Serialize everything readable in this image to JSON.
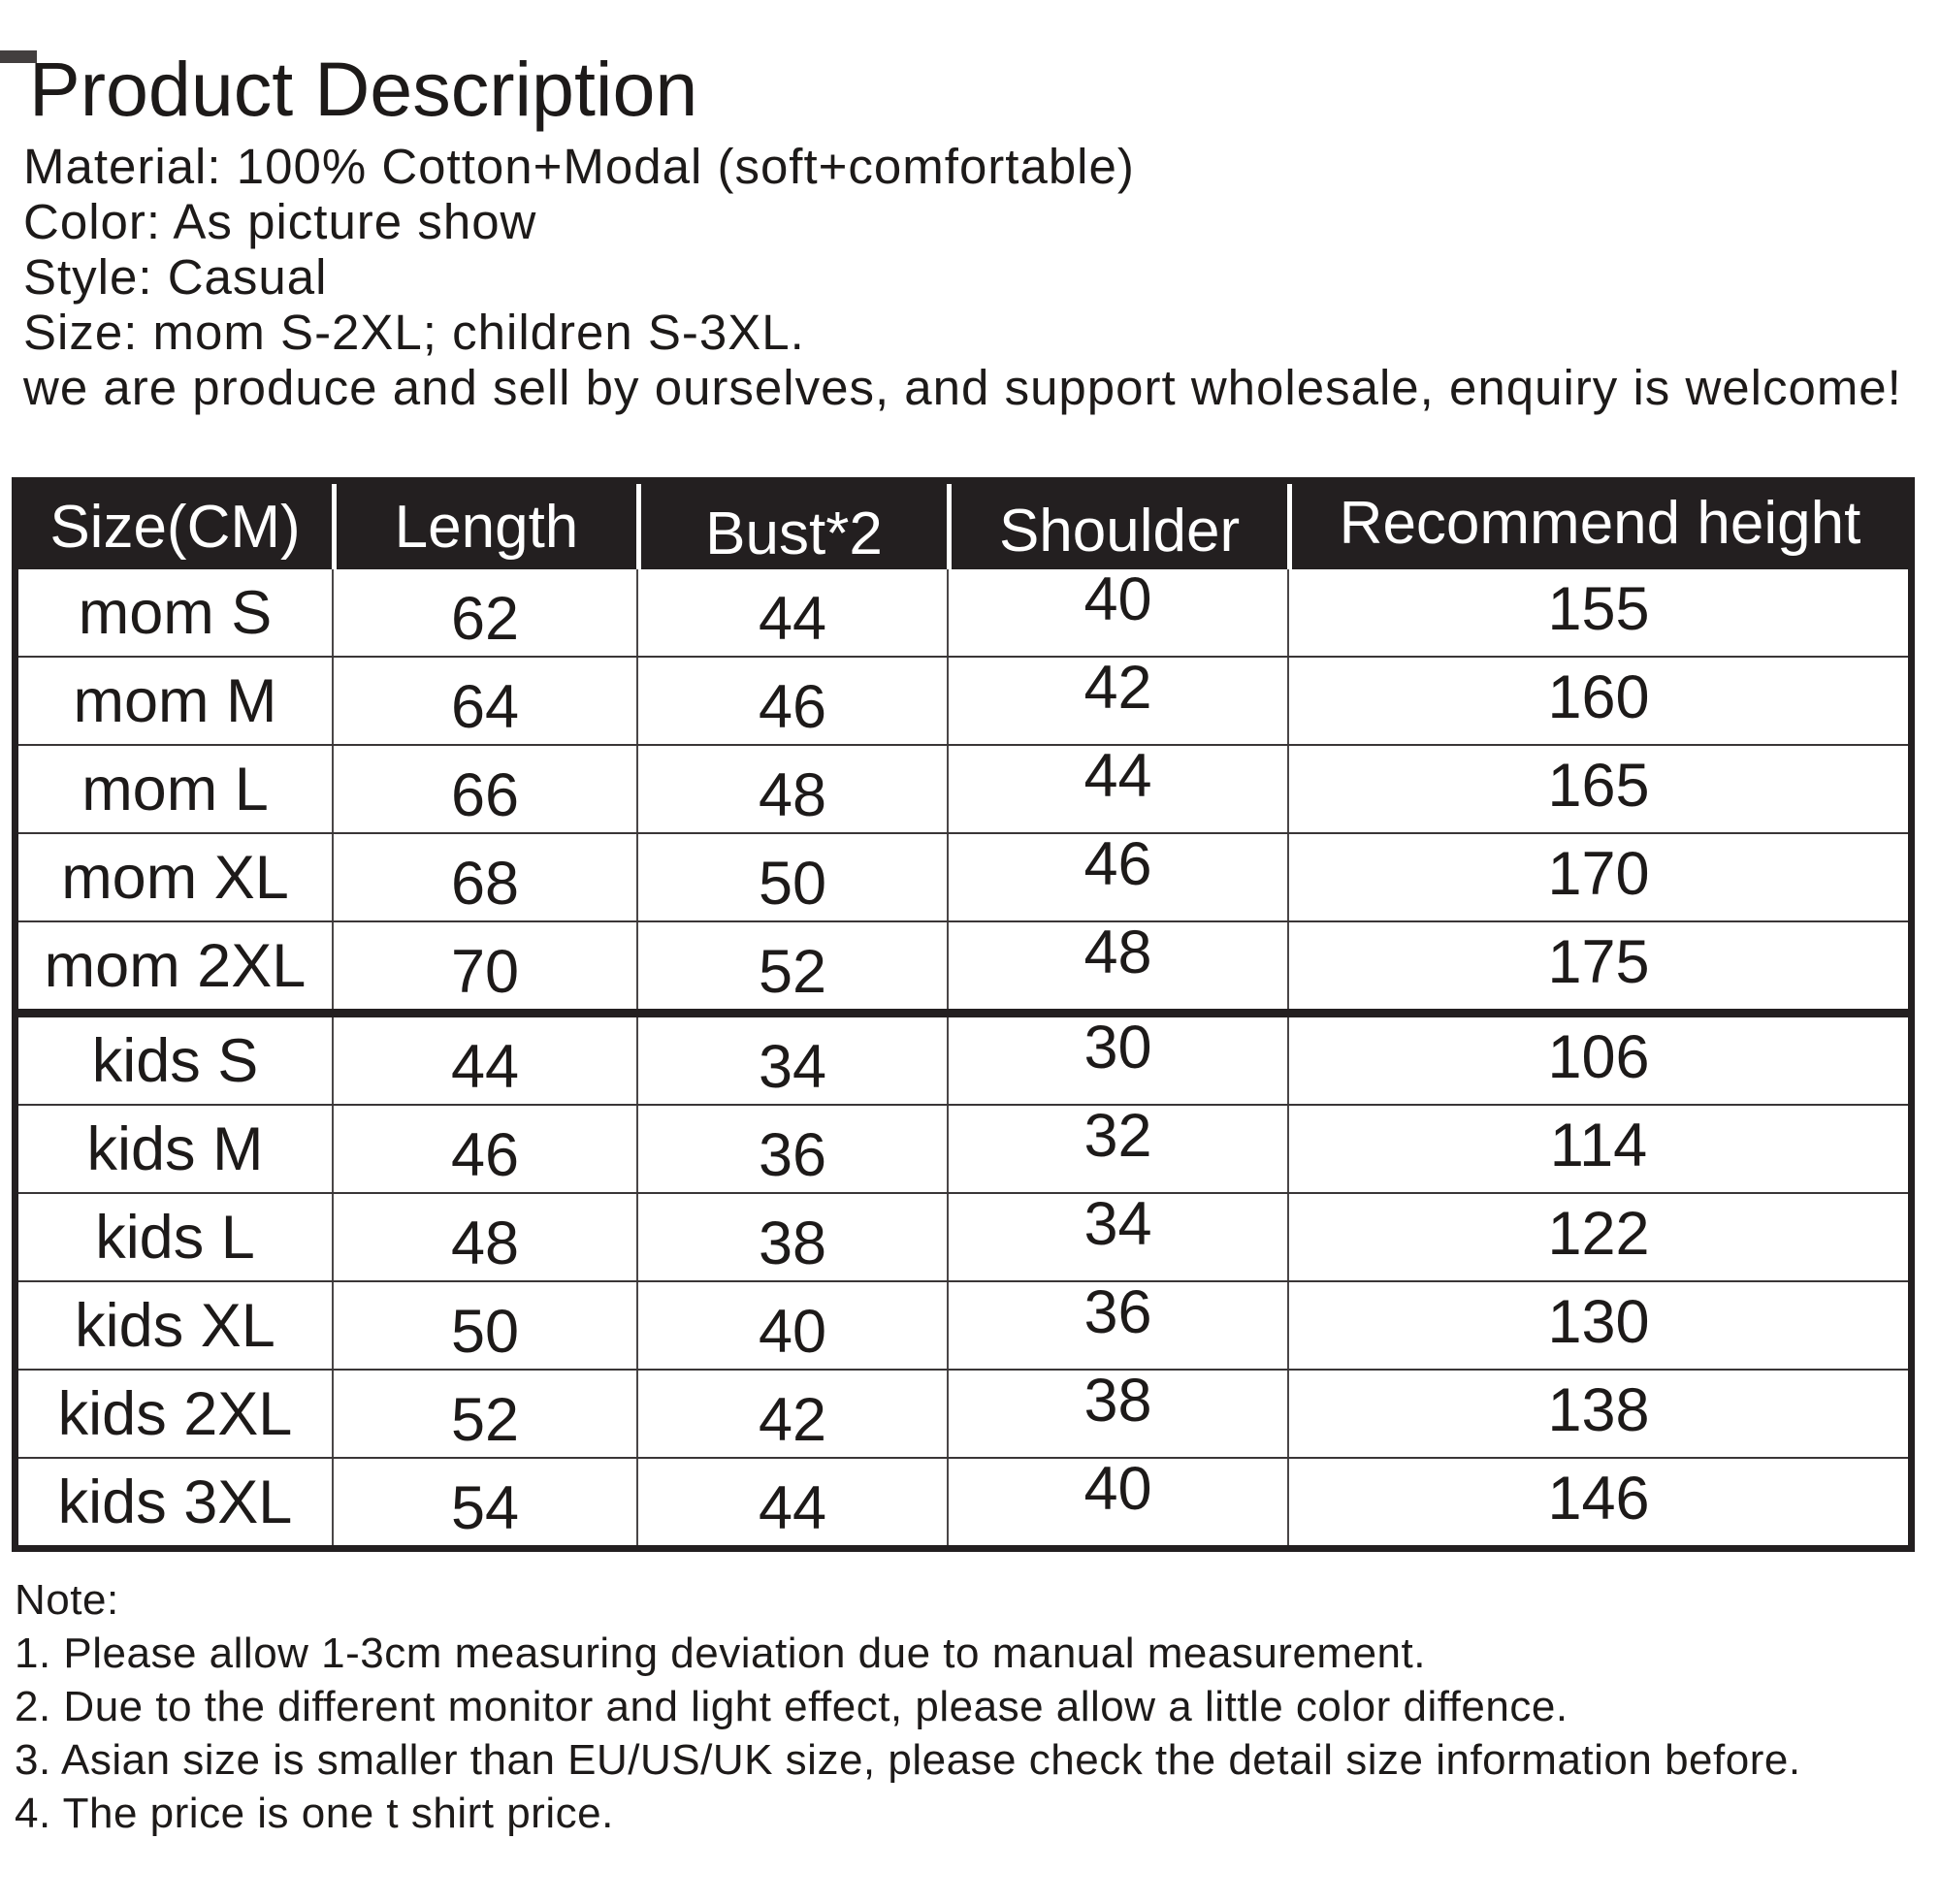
{
  "header": {
    "title": "Product Description"
  },
  "product_info": {
    "lines": [
      "Material: 100% Cotton+Modal (soft+comfortable)",
      "Color: As picture show",
      "Style: Casual",
      "Size: mom S-2XL; children S-3XL.",
      "we are produce and sell by ourselves, and support wholesale, enquiry is welcome!"
    ]
  },
  "size_table": {
    "columns": [
      "Size(CM)",
      "Length",
      "Bust*2",
      "Shoulder",
      "Recommend height"
    ],
    "rows": [
      {
        "size": "mom S",
        "length": "62",
        "bust2": "44",
        "shoulder": "40",
        "recommend_height": "155",
        "group": "mom"
      },
      {
        "size": "mom M",
        "length": "64",
        "bust2": "46",
        "shoulder": "42",
        "recommend_height": "160",
        "group": "mom"
      },
      {
        "size": "mom L",
        "length": "66",
        "bust2": "48",
        "shoulder": "44",
        "recommend_height": "165",
        "group": "mom"
      },
      {
        "size": "mom XL",
        "length": "68",
        "bust2": "50",
        "shoulder": "46",
        "recommend_height": "170",
        "group": "mom"
      },
      {
        "size": "mom 2XL",
        "length": "70",
        "bust2": "52",
        "shoulder": "48",
        "recommend_height": "175",
        "group": "mom"
      },
      {
        "size": "kids S",
        "length": "44",
        "bust2": "34",
        "shoulder": "30",
        "recommend_height": "106",
        "group": "kids"
      },
      {
        "size": "kids M",
        "length": "46",
        "bust2": "36",
        "shoulder": "32",
        "recommend_height": "114",
        "group": "kids"
      },
      {
        "size": "kids L",
        "length": "48",
        "bust2": "38",
        "shoulder": "34",
        "recommend_height": "122",
        "group": "kids"
      },
      {
        "size": "kids XL",
        "length": "50",
        "bust2": "40",
        "shoulder": "36",
        "recommend_height": "130",
        "group": "kids"
      },
      {
        "size": "kids 2XL",
        "length": "52",
        "bust2": "42",
        "shoulder": "38",
        "recommend_height": "138",
        "group": "kids"
      },
      {
        "size": "kids 3XL",
        "length": "54",
        "bust2": "44",
        "shoulder": "40",
        "recommend_height": "146",
        "group": "kids"
      }
    ]
  },
  "notes": {
    "heading": "Note:",
    "items": [
      "1. Please allow 1-3cm measuring deviation due to manual measurement.",
      "2. Due to the different monitor and light effect, please allow a little color diffence.",
      "3. Asian size is smaller than EU/US/UK size, please check the detail size information before.",
      "4. The price is one t shirt price."
    ]
  },
  "colors": {
    "table_header_bg": "#231f20",
    "text": "#1d1a19",
    "table_border": "#231f20"
  }
}
